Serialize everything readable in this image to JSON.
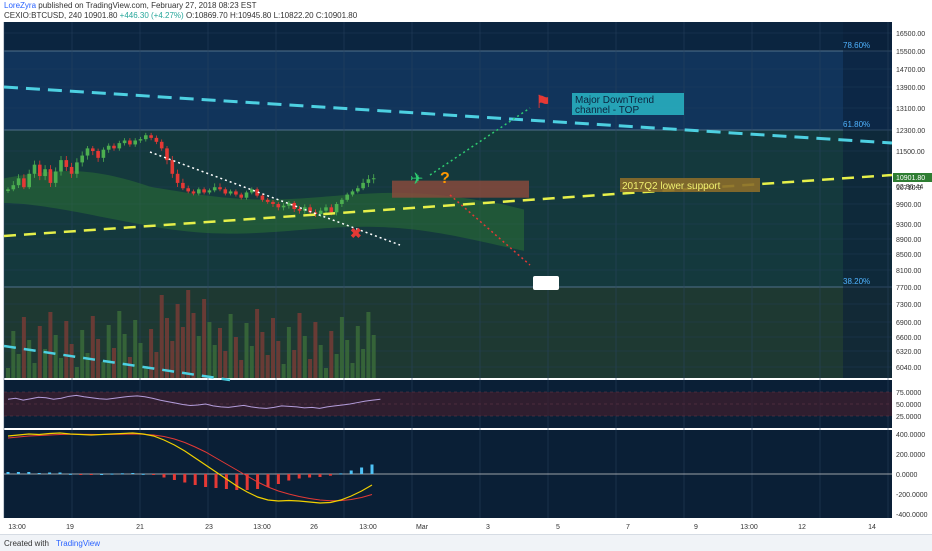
{
  "header": {
    "user": "LoreZyra",
    "published_text": "published on TradingView.com, February 27, 2018 08:23 EST",
    "symbol_line_prefix": "CEXIO:BTCUSD, 240",
    "last_value": "10901.80",
    "change_text": "+446.30 (+4.27%)",
    "ohlc_text": "O:10869.70  H:10945.80  L:10822.20  C:10901.80"
  },
  "footer": {
    "created_with": "Created with",
    "brand": "TradingView"
  },
  "colors": {
    "background": "#0b2540",
    "channel_top": "#4dd0e1",
    "lower_support": "#e6f04a",
    "bull_candle": "#4caf50",
    "bear_candle": "#e53935",
    "cloud_bull": "#2e7d32",
    "cloud_bear": "#8d4b3c",
    "fib_line": "#4a6a8a",
    "rsi_line": "#b39ddb",
    "macd_line": "#f0d000",
    "signal_line": "#e53935",
    "histogram_pos": "#4fc3f7",
    "histogram_neg": "#e53935"
  },
  "chart_data": {
    "type": "line",
    "title": "CEXIO:BTCUSD, 240",
    "y_axis": {
      "ticks": [
        "16500.00",
        "15500.00",
        "14700.00",
        "13900.00",
        "13100.00",
        "12300.00",
        "11500.00",
        "10710.0",
        "9900.00",
        "9300.00",
        "8900.00",
        "8500.00",
        "8100.00",
        "7700.00",
        "7300.00",
        "6900.00",
        "6600.00",
        "6320.00",
        "6040.00"
      ],
      "last_price_label": "10901.80",
      "countdown_label": "02:36:44",
      "ylim": [
        5800,
        16500
      ]
    },
    "x_axis": {
      "ticks": [
        "13:00",
        "19",
        "21",
        "23",
        "13:00",
        "26",
        "13:00",
        "Mar",
        "3",
        "5",
        "7",
        "9",
        "13:00",
        "12",
        "14"
      ]
    },
    "fib_levels": [
      {
        "label": "78.60%",
        "price": 15500
      },
      {
        "label": "61.80%",
        "price": 12300
      },
      {
        "label": "38.20%",
        "price": 7700
      }
    ],
    "annotations": [
      {
        "text": "Major DownTrend channel - TOP"
      },
      {
        "text": "2017Q2 lower support"
      }
    ],
    "price_series": {
      "name": "BTCUSD",
      "x": [
        0,
        1,
        2,
        3,
        4,
        5,
        6,
        7,
        8,
        9,
        10,
        11,
        12,
        13,
        14,
        15,
        16,
        17,
        18,
        19,
        20,
        21,
        22,
        23,
        24,
        25,
        26,
        27,
        28,
        29,
        30,
        31,
        32,
        33,
        34,
        35,
        36,
        37,
        38,
        39,
        40,
        41,
        42,
        43,
        44,
        45,
        46,
        47,
        48,
        49,
        50,
        51,
        52,
        53,
        54,
        55,
        56,
        57,
        58,
        59,
        60,
        61,
        62,
        63,
        64,
        65,
        66,
        67,
        68,
        69
      ],
      "close": [
        10600,
        10750,
        10900,
        10700,
        11000,
        11200,
        10950,
        11100,
        10800,
        11050,
        11300,
        11150,
        11000,
        11250,
        11400,
        11600,
        11500,
        11350,
        11550,
        11700,
        11600,
        11800,
        11900,
        11750,
        11900,
        11950,
        12100,
        12000,
        11850,
        11600,
        11300,
        11000,
        10800,
        10650,
        10500,
        10400,
        10600,
        10450,
        10550,
        10700,
        10600,
        10400,
        10500,
        10350,
        10200,
        10450,
        10600,
        10300,
        10100,
        10000,
        9900,
        9800,
        9850,
        9950,
        9750,
        9700,
        9800,
        9650,
        9600,
        9700,
        9800,
        9650,
        9900,
        10100,
        10350,
        10500,
        10650,
        10800,
        10880,
        10901.8
      ]
    },
    "rsi": {
      "levels": [
        "75.0000",
        "50.0000",
        "25.0000"
      ],
      "values": [
        60,
        62,
        58,
        61,
        64,
        63,
        60,
        62,
        66,
        68,
        65,
        63,
        61,
        60,
        62,
        64,
        66,
        67,
        65,
        62,
        58,
        55,
        52,
        49,
        47,
        48,
        50,
        46,
        44,
        43,
        45,
        47,
        44,
        42,
        41,
        43,
        46,
        45,
        44,
        42,
        43,
        41,
        44,
        46,
        48,
        50,
        53,
        56,
        58,
        60
      ]
    },
    "macd": {
      "levels": [
        "400.0000",
        "200.0000",
        "0.0000",
        "-200.0000",
        "-400.0000"
      ],
      "macd": [
        380,
        390,
        400,
        395,
        405,
        410,
        400,
        395,
        390,
        395,
        400,
        405,
        410,
        400,
        380,
        340,
        290,
        230,
        160,
        90,
        20,
        -50,
        -120,
        -180,
        -230,
        -260,
        -270,
        -265,
        -270,
        -280,
        -290,
        -285,
        -260,
        -220,
        -170,
        -110
      ],
      "signal": [
        360,
        370,
        380,
        385,
        390,
        395,
        398,
        398,
        396,
        395,
        396,
        398,
        400,
        398,
        390,
        375,
        350,
        315,
        270,
        220,
        160,
        100,
        40,
        -20,
        -80,
        -130,
        -170,
        -200,
        -225,
        -245,
        -260,
        -268,
        -266,
        -255,
        -235,
        -205
      ],
      "histogram": [
        20,
        20,
        20,
        10,
        15,
        15,
        2,
        -3,
        -6,
        0,
        4,
        7,
        10,
        2,
        -10,
        -35,
        -60,
        -85,
        -110,
        -130,
        -140,
        -150,
        -160,
        -160,
        -150,
        -130,
        -100,
        -65,
        -45,
        -35,
        -30,
        -17,
        6,
        35,
        65,
        95
      ]
    }
  }
}
